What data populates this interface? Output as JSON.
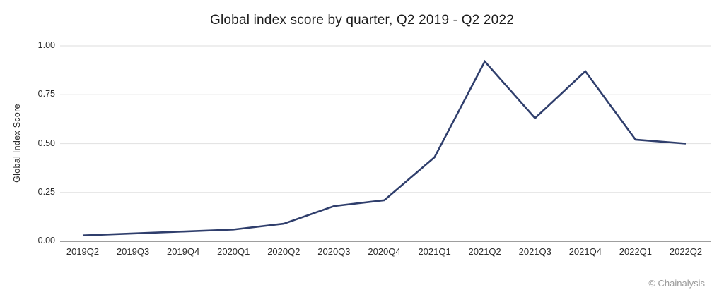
{
  "chart_data": {
    "type": "line",
    "title": "Global index score by quarter, Q2 2019 - Q2 2022",
    "ylabel": "Global Index Score",
    "xlabel": "",
    "categories": [
      "2019Q2",
      "2019Q3",
      "2019Q4",
      "2020Q1",
      "2020Q2",
      "2020Q3",
      "2020Q4",
      "2021Q1",
      "2021Q2",
      "2021Q3",
      "2021Q4",
      "2022Q1",
      "2022Q2"
    ],
    "values": [
      0.03,
      0.04,
      0.05,
      0.06,
      0.09,
      0.18,
      0.21,
      0.43,
      0.92,
      0.63,
      0.87,
      0.52,
      0.5
    ],
    "ylim": [
      0,
      1
    ],
    "y_tick_values": [
      0,
      0.25,
      0.5,
      0.75,
      1
    ],
    "y_tick_labels": [
      "0.00",
      "0.25",
      "0.50",
      "0.75",
      "1.00"
    ],
    "grid": true,
    "legend_position": "none",
    "line_color": "#2f3e6c",
    "grid_color": "#e4e4e4",
    "axis_color": "#9e9e9e",
    "tick_text_color": "#2b2b2b",
    "title_color": "#1c1c1c"
  },
  "footer": {
    "attribution": "© Chainalysis"
  }
}
